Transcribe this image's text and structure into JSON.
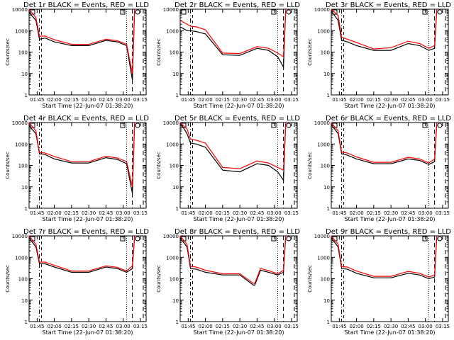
{
  "colors": {
    "events": "#000000",
    "lld": "#ff0000",
    "background": "#ffffff"
  },
  "shared": {
    "xlabel": "Start Time (22-Jun-07 01:38:20)",
    "ylabel": "Counts/sec",
    "x_ticks": [
      "01:45",
      "02:00",
      "02:15",
      "02:30",
      "02:45",
      "03:00",
      "03:15"
    ],
    "y_ticks": [
      "1",
      "10",
      "100",
      "1000",
      "10000"
    ],
    "ylim": [
      1,
      10000
    ],
    "yscale": "log",
    "xlim": [
      "01:38",
      "03:20"
    ]
  },
  "chart_data": [
    {
      "type": "line",
      "title": "Det 1r BLACK = Events, RED = LLD",
      "x": [
        "01:38",
        "01:44",
        "01:47",
        "01:52",
        "02:00",
        "02:15",
        "02:30",
        "02:45",
        "02:55",
        "03:03",
        "03:08",
        "03:10"
      ],
      "series": [
        {
          "name": "Events",
          "values": [
            7000,
            3000,
            400,
            450,
            300,
            200,
            200,
            350,
            300,
            200,
            5,
            10000
          ]
        },
        {
          "name": "LLD",
          "values": [
            10000,
            4000,
            550,
            560,
            380,
            230,
            230,
            400,
            340,
            230,
            10,
            10000
          ]
        }
      ]
    },
    {
      "type": "line",
      "title": "Det 2r BLACK = Events, RED = LLD",
      "x": [
        "01:38",
        "01:44",
        "01:47",
        "01:52",
        "02:00",
        "02:15",
        "02:30",
        "02:45",
        "02:55",
        "03:03",
        "03:08",
        "03:10"
      ],
      "series": [
        {
          "name": "Events",
          "values": [
            1500,
            1000,
            1000,
            900,
            700,
            75,
            70,
            150,
            120,
            60,
            20,
            10000
          ]
        },
        {
          "name": "LLD",
          "values": [
            3000,
            2000,
            1600,
            1500,
            1100,
            90,
            85,
            180,
            150,
            90,
            60,
            10000
          ]
        }
      ]
    },
    {
      "type": "line",
      "title": "Det 3r BLACK = Events, RED = LLD",
      "x": [
        "01:38",
        "01:44",
        "01:47",
        "01:52",
        "02:00",
        "02:15",
        "02:30",
        "02:45",
        "02:55",
        "03:03",
        "03:08",
        "03:10"
      ],
      "series": [
        {
          "name": "Events",
          "values": [
            8000,
            3000,
            350,
            300,
            200,
            120,
            120,
            250,
            200,
            120,
            150,
            10000
          ]
        },
        {
          "name": "LLD",
          "values": [
            10000,
            5000,
            500,
            400,
            280,
            140,
            160,
            320,
            250,
            150,
            200,
            10000
          ]
        }
      ]
    },
    {
      "type": "line",
      "title": "Det 4r BLACK = Events, RED = LLD",
      "x": [
        "01:38",
        "01:44",
        "01:47",
        "01:52",
        "02:00",
        "02:15",
        "02:30",
        "02:45",
        "02:55",
        "03:03",
        "03:08",
        "03:10"
      ],
      "series": [
        {
          "name": "Events",
          "values": [
            7000,
            3000,
            350,
            320,
            200,
            130,
            130,
            230,
            190,
            120,
            5,
            10000
          ]
        },
        {
          "name": "LLD",
          "values": [
            10000,
            4000,
            400,
            380,
            260,
            150,
            150,
            270,
            220,
            150,
            10,
            10000
          ]
        }
      ]
    },
    {
      "type": "line",
      "title": "Det 5r BLACK = Events, RED = LLD",
      "x": [
        "01:38",
        "01:44",
        "01:47",
        "01:52",
        "02:00",
        "02:15",
        "02:30",
        "02:45",
        "02:55",
        "03:03",
        "03:08",
        "03:10"
      ],
      "series": [
        {
          "name": "Events",
          "values": [
            10000,
            3000,
            1100,
            1000,
            700,
            60,
            50,
            120,
            100,
            50,
            20,
            10000
          ]
        },
        {
          "name": "LLD",
          "values": [
            10000,
            5000,
            1700,
            1500,
            1100,
            80,
            70,
            160,
            130,
            80,
            60,
            10000
          ]
        }
      ]
    },
    {
      "type": "line",
      "title": "Det 6r BLACK = Events, RED = LLD",
      "x": [
        "01:38",
        "01:44",
        "01:47",
        "01:52",
        "02:00",
        "02:15",
        "02:30",
        "02:45",
        "02:55",
        "03:03",
        "03:08",
        "03:10"
      ],
      "series": [
        {
          "name": "Events",
          "values": [
            8000,
            3000,
            350,
            300,
            200,
            120,
            120,
            200,
            170,
            110,
            150,
            10000
          ]
        },
        {
          "name": "LLD",
          "values": [
            10000,
            4000,
            420,
            380,
            250,
            140,
            140,
            240,
            200,
            130,
            200,
            10000
          ]
        }
      ]
    },
    {
      "type": "line",
      "title": "Det 7r BLACK = Events, RED = LLD",
      "x": [
        "01:38",
        "01:44",
        "01:47",
        "01:52",
        "02:00",
        "02:15",
        "02:30",
        "02:45",
        "02:55",
        "03:03",
        "03:08",
        "03:10"
      ],
      "series": [
        {
          "name": "Events",
          "values": [
            8000,
            3000,
            500,
            500,
            350,
            200,
            200,
            350,
            300,
            200,
            300,
            10000
          ]
        },
        {
          "name": "LLD",
          "values": [
            10000,
            4000,
            600,
            600,
            420,
            230,
            230,
            400,
            340,
            230,
            400,
            10000
          ]
        }
      ]
    },
    {
      "type": "line",
      "title": "Det 8r BLACK = Events, RED = LLD",
      "x": [
        "01:38",
        "01:44",
        "01:47",
        "01:52",
        "02:00",
        "02:15",
        "02:30",
        "02:42",
        "02:43",
        "02:48",
        "02:55",
        "03:03",
        "03:08",
        "03:10"
      ],
      "series": [
        {
          "name": "Events",
          "values": [
            8000,
            3000,
            300,
            280,
            200,
            150,
            150,
            50,
            50,
            250,
            200,
            150,
            200,
            10000
          ]
        },
        {
          "name": "LLD",
          "values": [
            10000,
            4000,
            380,
            350,
            250,
            170,
            170,
            60,
            60,
            300,
            240,
            170,
            250,
            10000
          ]
        }
      ]
    },
    {
      "type": "line",
      "title": "Det 9r BLACK = Events, RED = LLD",
      "x": [
        "01:38",
        "01:44",
        "01:47",
        "01:52",
        "02:00",
        "02:15",
        "02:30",
        "02:45",
        "02:55",
        "03:03",
        "03:08",
        "03:10"
      ],
      "series": [
        {
          "name": "Events",
          "values": [
            8000,
            3000,
            300,
            280,
            180,
            110,
            110,
            180,
            150,
            100,
            120,
            10000
          ]
        },
        {
          "name": "LLD",
          "values": [
            10000,
            4000,
            370,
            350,
            230,
            130,
            130,
            220,
            180,
            120,
            150,
            10000
          ]
        }
      ]
    }
  ]
}
